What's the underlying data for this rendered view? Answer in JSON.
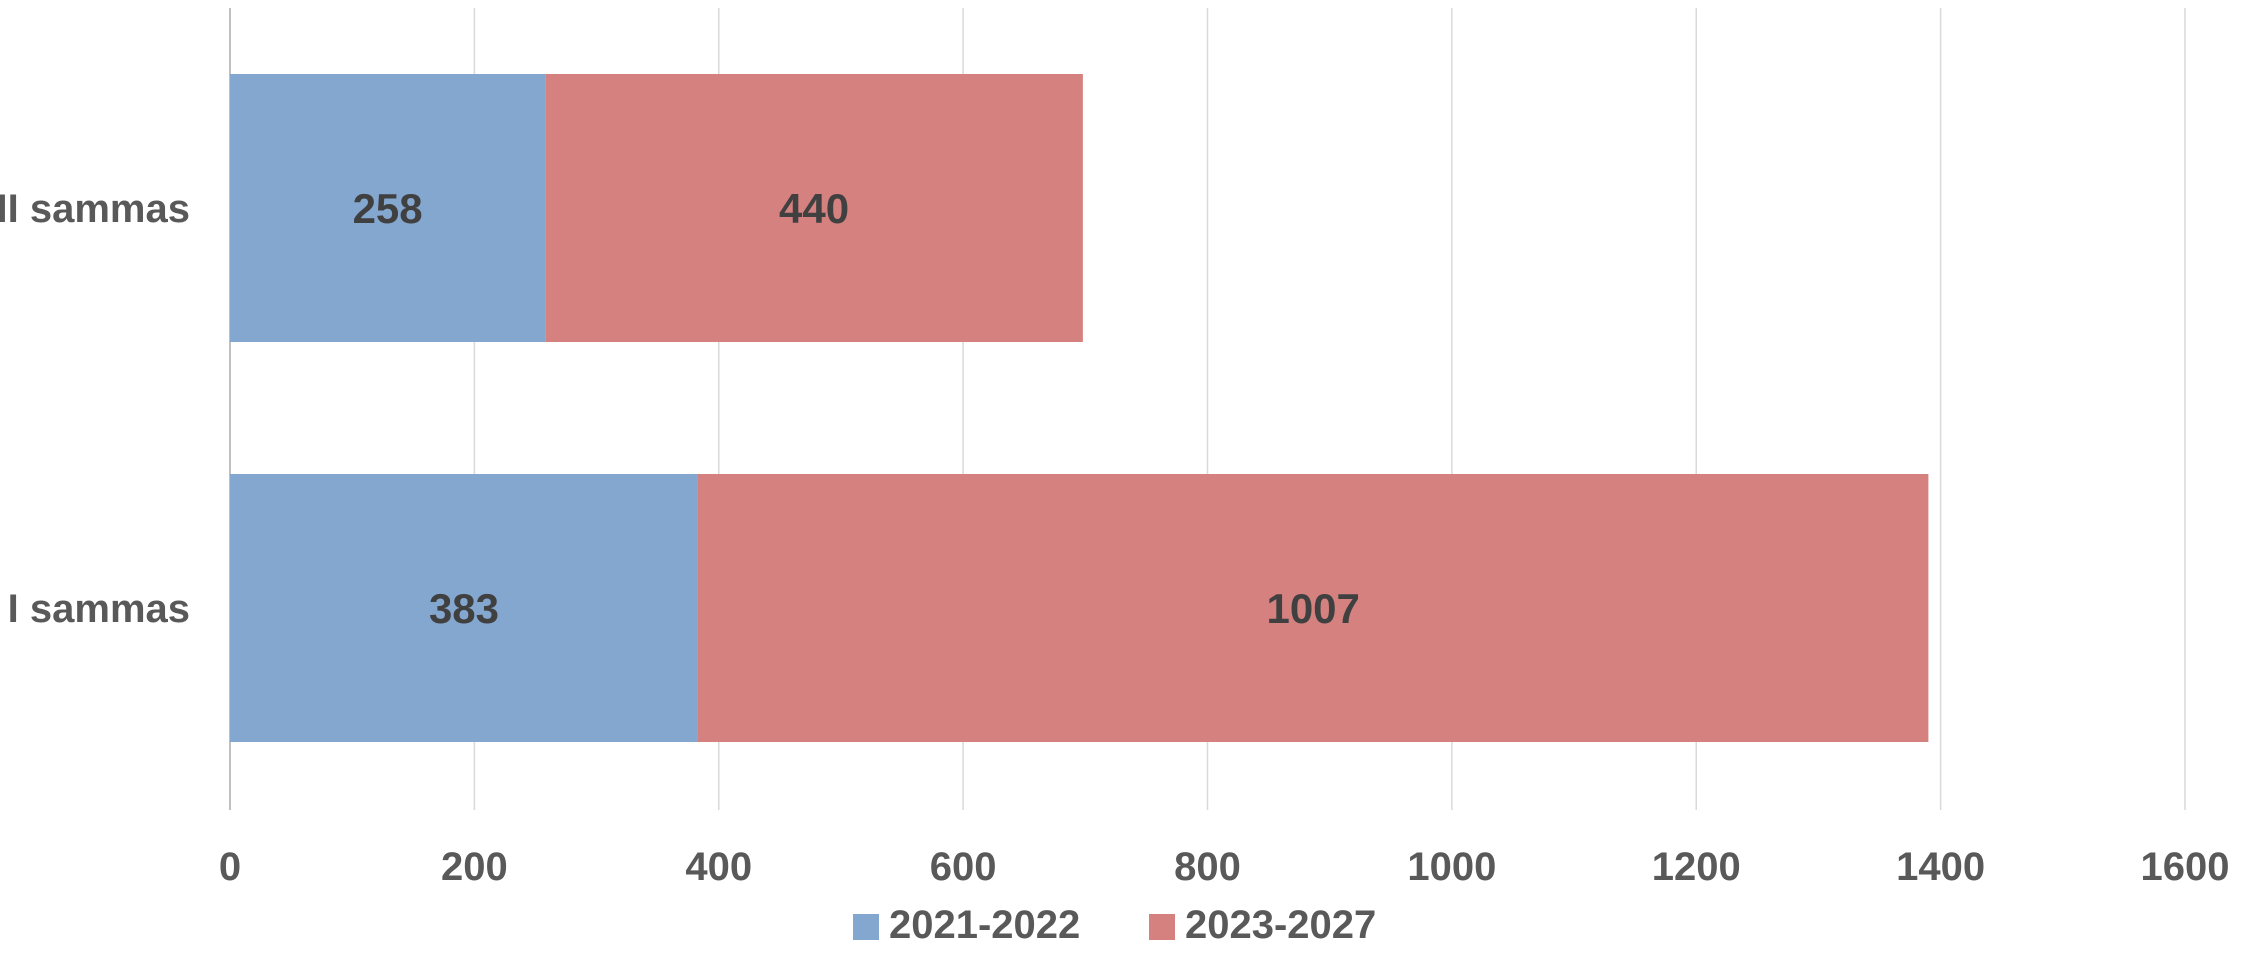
{
  "chart_data": {
    "type": "bar",
    "orientation": "horizontal",
    "stacked": true,
    "title": "",
    "xlabel": "",
    "ylabel": "",
    "categories": [
      "II sammas",
      "I sammas"
    ],
    "series": [
      {
        "name": "2021-2022",
        "color": "#84A7D0",
        "values": [
          258,
          383
        ]
      },
      {
        "name": "2023-2027",
        "color": "#D48180",
        "values": [
          440,
          1007
        ]
      }
    ],
    "xlim": [
      0,
      1600
    ],
    "xticks": [
      "0",
      "200",
      "400",
      "600",
      "800",
      "1000",
      "1200",
      "1400",
      "1600"
    ],
    "grid": true,
    "legend": "bottom",
    "data_labels": true
  }
}
